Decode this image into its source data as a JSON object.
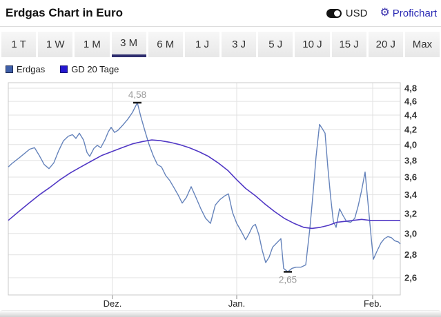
{
  "header": {
    "title": "Erdgas Chart in Euro",
    "usd_label": "USD",
    "profichart_label": "Profichart"
  },
  "tabs": {
    "items": [
      "1 T",
      "1 W",
      "1 M",
      "3 M",
      "6 M",
      "1 J",
      "3 J",
      "5 J",
      "10 J",
      "15 J",
      "20 J",
      "Max"
    ],
    "active": "3 M",
    "active_underline_color": "#2e2d6e"
  },
  "legend": {
    "items": [
      {
        "label": "Erdgas",
        "color": "#3f5fa8",
        "border": "#1d2a55"
      },
      {
        "label": "GD 20 Tage",
        "color": "#2518d0",
        "border": "#15127a"
      }
    ]
  },
  "chart_data": {
    "type": "line",
    "title": "Erdgas Chart in Euro",
    "grid": true,
    "y_axis": {
      "side": "right",
      "scale": "log",
      "min": 2.6,
      "max": 4.8,
      "tick_step": 0.2,
      "tick_labels": [
        "4,8",
        "4,6",
        "4,4",
        "4,2",
        "4,0",
        "3,8",
        "3,6",
        "3,4",
        "3,2",
        "3,0",
        "2,8",
        "2,6"
      ]
    },
    "x_axis": {
      "tick_labels": [
        "Dez.",
        "Jan.",
        "Feb."
      ],
      "tick_x": [
        163,
        343,
        540
      ]
    },
    "annotations": [
      {
        "text": "4,58",
        "x": 199,
        "value": 4.58,
        "position": "above"
      },
      {
        "text": "2,65",
        "x": 417,
        "value": 2.65,
        "position": "below"
      }
    ],
    "series": [
      {
        "name": "Erdgas",
        "color": "#6583bb",
        "width": 1.4,
        "points": [
          [
            12,
            3.72
          ],
          [
            17,
            3.76
          ],
          [
            23,
            3.8
          ],
          [
            29,
            3.84
          ],
          [
            36,
            3.89
          ],
          [
            43,
            3.94
          ],
          [
            50,
            3.96
          ],
          [
            57,
            3.86
          ],
          [
            64,
            3.75
          ],
          [
            71,
            3.7
          ],
          [
            78,
            3.77
          ],
          [
            85,
            3.92
          ],
          [
            92,
            4.05
          ],
          [
            99,
            4.11
          ],
          [
            105,
            4.13
          ],
          [
            110,
            4.08
          ],
          [
            115,
            4.15
          ],
          [
            121,
            4.06
          ],
          [
            126,
            3.9
          ],
          [
            130,
            3.85
          ],
          [
            136,
            3.95
          ],
          [
            141,
            3.99
          ],
          [
            146,
            3.96
          ],
          [
            152,
            4.06
          ],
          [
            157,
            4.17
          ],
          [
            161,
            4.23
          ],
          [
            166,
            4.16
          ],
          [
            171,
            4.19
          ],
          [
            178,
            4.26
          ],
          [
            185,
            4.34
          ],
          [
            192,
            4.44
          ],
          [
            199,
            4.58
          ],
          [
            204,
            4.38
          ],
          [
            210,
            4.18
          ],
          [
            216,
            4.0
          ],
          [
            222,
            3.86
          ],
          [
            228,
            3.75
          ],
          [
            234,
            3.72
          ],
          [
            240,
            3.62
          ],
          [
            246,
            3.56
          ],
          [
            252,
            3.48
          ],
          [
            258,
            3.4
          ],
          [
            264,
            3.31
          ],
          [
            270,
            3.37
          ],
          [
            277,
            3.49
          ],
          [
            284,
            3.37
          ],
          [
            291,
            3.25
          ],
          [
            298,
            3.15
          ],
          [
            305,
            3.1
          ],
          [
            312,
            3.29
          ],
          [
            319,
            3.35
          ],
          [
            326,
            3.39
          ],
          [
            331,
            3.41
          ],
          [
            337,
            3.21
          ],
          [
            343,
            3.1
          ],
          [
            348,
            3.04
          ],
          [
            352,
            2.99
          ],
          [
            356,
            2.94
          ],
          [
            361,
            3.0
          ],
          [
            366,
            3.07
          ],
          [
            370,
            3.09
          ],
          [
            375,
            2.99
          ],
          [
            380,
            2.84
          ],
          [
            385,
            2.73
          ],
          [
            390,
            2.78
          ],
          [
            395,
            2.87
          ],
          [
            401,
            2.91
          ],
          [
            407,
            2.95
          ],
          [
            411,
            2.68
          ],
          [
            417,
            2.65
          ],
          [
            423,
            2.68
          ],
          [
            429,
            2.69
          ],
          [
            436,
            2.69
          ],
          [
            443,
            2.71
          ],
          [
            449,
            3.05
          ],
          [
            454,
            3.45
          ],
          [
            458,
            3.85
          ],
          [
            463,
            4.27
          ],
          [
            467,
            4.21
          ],
          [
            471,
            4.15
          ],
          [
            475,
            3.72
          ],
          [
            479,
            3.38
          ],
          [
            483,
            3.12
          ],
          [
            487,
            3.06
          ],
          [
            492,
            3.25
          ],
          [
            497,
            3.18
          ],
          [
            502,
            3.12
          ],
          [
            508,
            3.11
          ],
          [
            514,
            3.15
          ],
          [
            519,
            3.28
          ],
          [
            524,
            3.45
          ],
          [
            529,
            3.66
          ],
          [
            534,
            3.25
          ],
          [
            538,
            2.95
          ],
          [
            541,
            2.76
          ],
          [
            546,
            2.83
          ],
          [
            552,
            2.91
          ],
          [
            557,
            2.95
          ],
          [
            562,
            2.97
          ],
          [
            567,
            2.96
          ],
          [
            572,
            2.93
          ],
          [
            577,
            2.92
          ],
          [
            580,
            2.9
          ]
        ]
      },
      {
        "name": "GD 20 Tage",
        "color": "#5138c5",
        "width": 1.6,
        "points": [
          [
            12,
            3.13
          ],
          [
            27,
            3.22
          ],
          [
            42,
            3.31
          ],
          [
            57,
            3.4
          ],
          [
            72,
            3.48
          ],
          [
            87,
            3.57
          ],
          [
            102,
            3.65
          ],
          [
            117,
            3.72
          ],
          [
            132,
            3.79
          ],
          [
            147,
            3.86
          ],
          [
            162,
            3.91
          ],
          [
            177,
            3.96
          ],
          [
            192,
            4.01
          ],
          [
            207,
            4.04
          ],
          [
            220,
            4.06
          ],
          [
            233,
            4.05
          ],
          [
            246,
            4.03
          ],
          [
            260,
            4.0
          ],
          [
            274,
            3.96
          ],
          [
            288,
            3.91
          ],
          [
            302,
            3.85
          ],
          [
            316,
            3.77
          ],
          [
            330,
            3.68
          ],
          [
            343,
            3.57
          ],
          [
            356,
            3.47
          ],
          [
            370,
            3.39
          ],
          [
            384,
            3.3
          ],
          [
            398,
            3.22
          ],
          [
            412,
            3.15
          ],
          [
            426,
            3.1
          ],
          [
            440,
            3.06
          ],
          [
            452,
            3.05
          ],
          [
            464,
            3.06
          ],
          [
            476,
            3.08
          ],
          [
            488,
            3.11
          ],
          [
            500,
            3.12
          ],
          [
            512,
            3.13
          ],
          [
            524,
            3.14
          ],
          [
            536,
            3.13
          ],
          [
            548,
            3.13
          ],
          [
            560,
            3.13
          ],
          [
            572,
            3.13
          ],
          [
            580,
            3.13
          ]
        ]
      }
    ]
  },
  "colors": {
    "grid": "#e2e2e2",
    "plot_border": "#c9c9c9",
    "axis_tick": "#8a8a8a",
    "y_label": "#333333",
    "x_label": "#222222",
    "annotation_text": "#9a9a9a",
    "annotation_tick": "#1a1a1a"
  }
}
